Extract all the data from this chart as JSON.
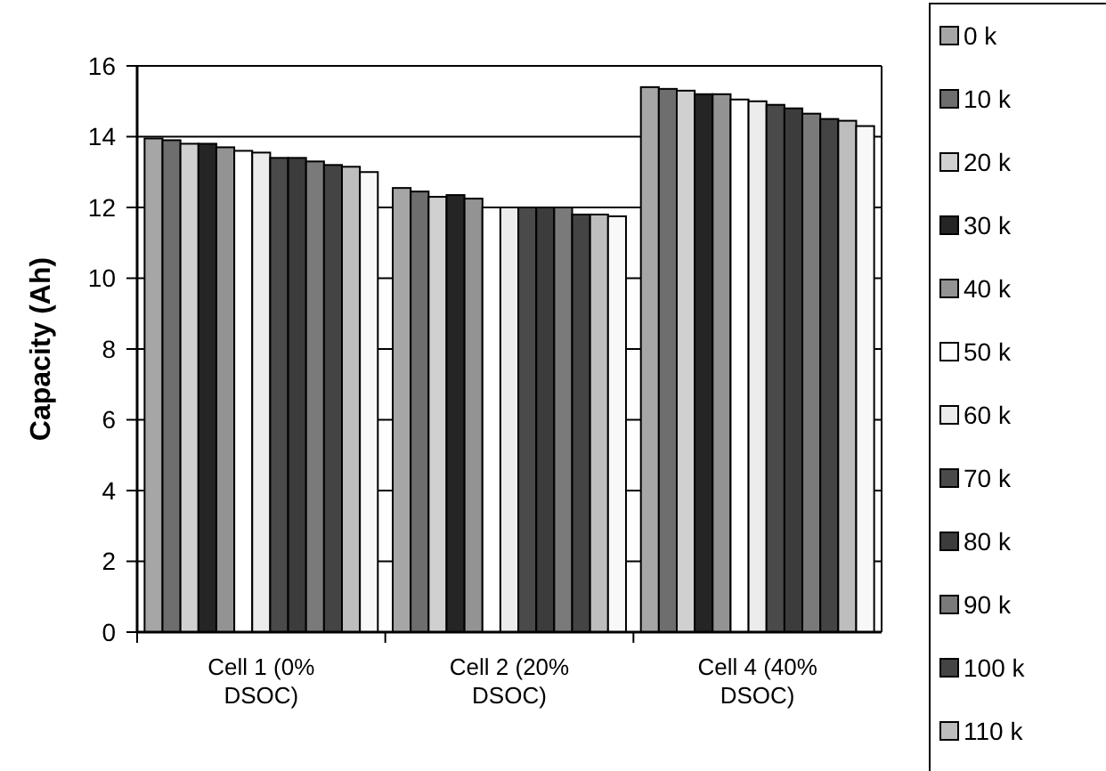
{
  "chart_data": {
    "type": "bar",
    "ylabel": "Capacity (Ah)",
    "categories": [
      "Cell 1 (0% DSOC)",
      "Cell 2 (20% DSOC)",
      "Cell 4 (40% DSOC)"
    ],
    "ylim": [
      0,
      16
    ],
    "yticks": [
      0,
      2,
      4,
      6,
      8,
      10,
      12,
      14,
      16
    ],
    "grid": "y",
    "legend": "right",
    "series": [
      {
        "name": "0 k",
        "color": "#a6a6a6",
        "values": [
          13.95,
          12.55,
          15.4
        ]
      },
      {
        "name": "10 k",
        "color": "#6e6e6e",
        "values": [
          13.9,
          12.45,
          15.35
        ]
      },
      {
        "name": "20 k",
        "color": "#d0d0d0",
        "values": [
          13.8,
          12.3,
          15.3
        ]
      },
      {
        "name": "30 k",
        "color": "#252525",
        "values": [
          13.8,
          12.35,
          15.2
        ]
      },
      {
        "name": "40 k",
        "color": "#939393",
        "values": [
          13.7,
          12.25,
          15.2
        ]
      },
      {
        "name": "50 k",
        "color": "#ffffff",
        "values": [
          13.6,
          12.0,
          15.05
        ]
      },
      {
        "name": "60 k",
        "color": "#ececec",
        "values": [
          13.55,
          12.0,
          15.0
        ]
      },
      {
        "name": "70 k",
        "color": "#4a4a4a",
        "values": [
          13.4,
          12.0,
          14.9
        ]
      },
      {
        "name": "80 k",
        "color": "#3c3c3c",
        "values": [
          13.4,
          12.0,
          14.8
        ]
      },
      {
        "name": "90 k",
        "color": "#7a7a7a",
        "values": [
          13.3,
          12.0,
          14.65
        ]
      },
      {
        "name": "100 k",
        "color": "#444444",
        "values": [
          13.2,
          11.8,
          14.5
        ]
      },
      {
        "name": "110 k",
        "color": "#bdbdbd",
        "values": [
          13.15,
          11.8,
          14.45
        ]
      },
      {
        "color": "#f8f8f8",
        "values": [
          13.0,
          11.75,
          14.3
        ]
      }
    ]
  }
}
